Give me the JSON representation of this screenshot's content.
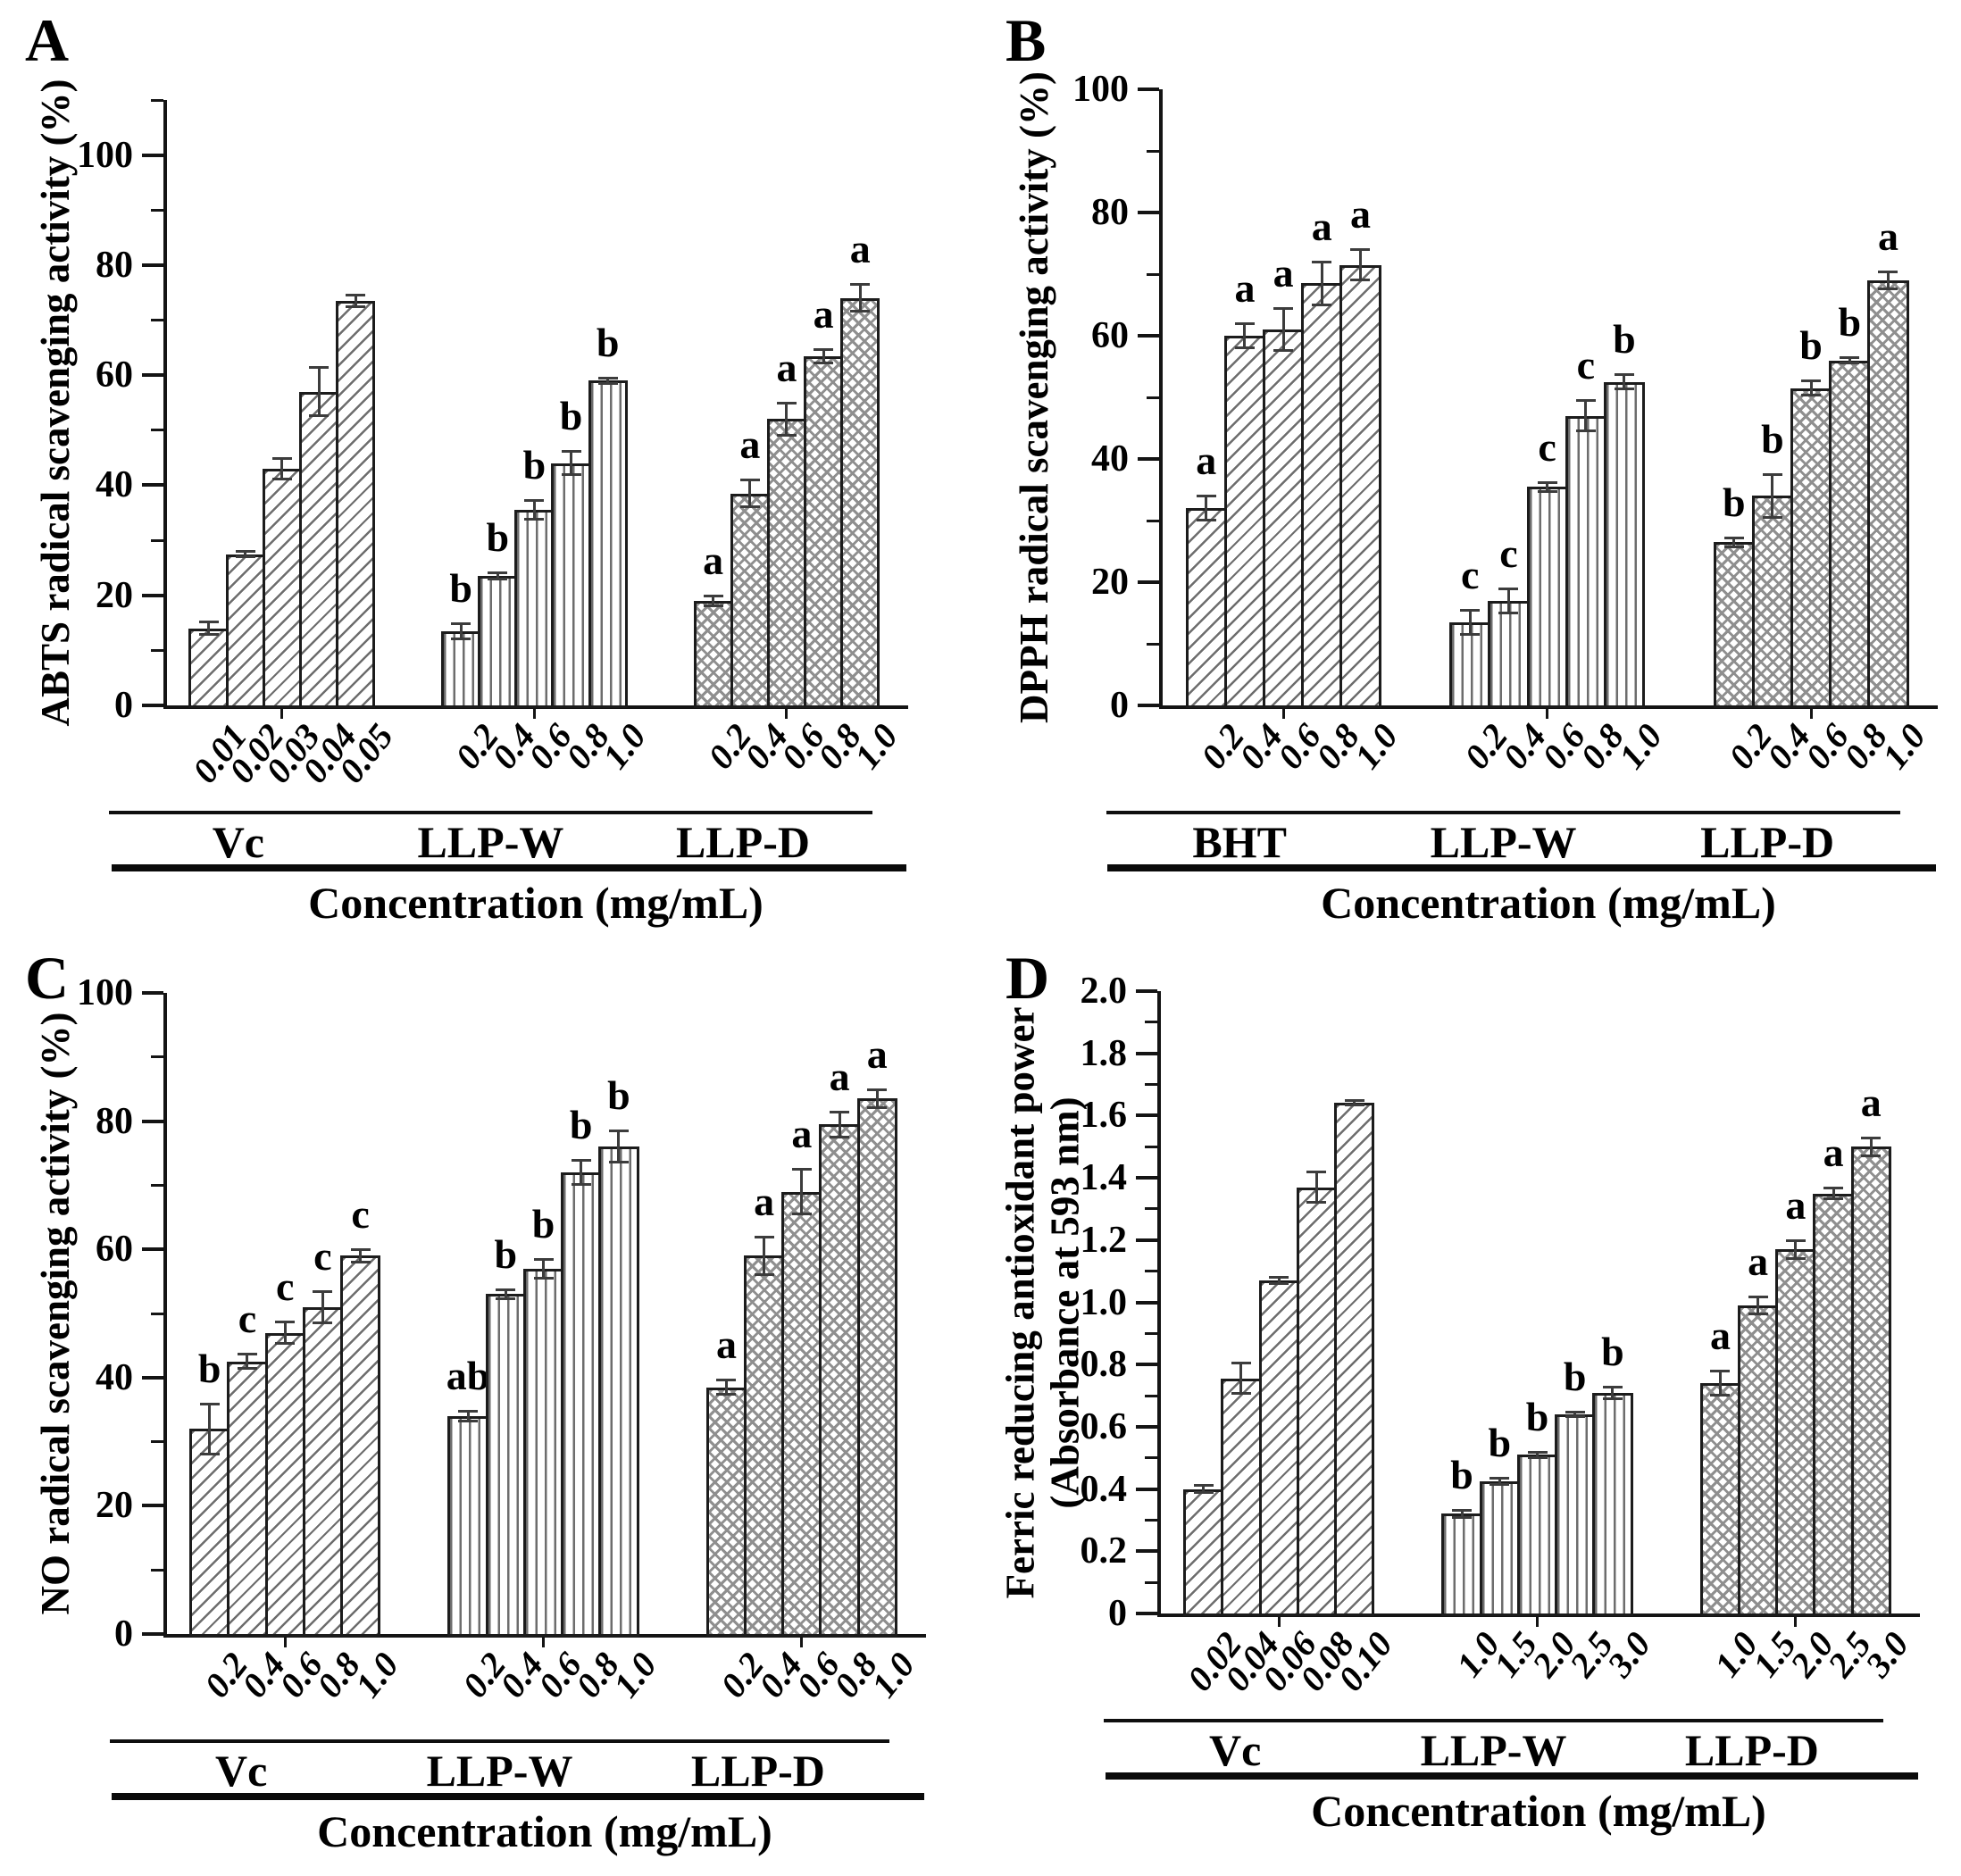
{
  "figure_colors": {
    "ink": "#000000",
    "axis": "#141414",
    "hatch_gray": "#6d6d6d"
  },
  "chart_data": [
    {
      "panel_label": "A",
      "type": "bar",
      "title": "",
      "ylabel_lines": [
        "ABTS radical scavenging activity (%)"
      ],
      "xlabel": "Concentration (mg/mL)",
      "ylim": [
        0,
        110
      ],
      "ytick_labels": [
        "0",
        "20",
        "40",
        "60",
        "80",
        "100"
      ],
      "ytick_major_step": 20,
      "ytick_minor_step": 10,
      "grid": "off",
      "legend": "none",
      "groups": [
        {
          "name": "Vc",
          "pattern": "diagonal",
          "categories": [
            "0.01",
            "0.02",
            "0.03",
            "0.04",
            "0.05"
          ],
          "values": [
            14,
            27.5,
            43,
            57,
            73.5
          ],
          "errors": [
            1.2,
            0.5,
            2,
            4.5,
            1.2
          ],
          "letters": [
            "",
            "",
            "",
            "",
            ""
          ]
        },
        {
          "name": "LLP-W",
          "pattern": "vertical",
          "categories": [
            "0.2",
            "0.4",
            "0.6",
            "0.8",
            "1.0"
          ],
          "values": [
            13.5,
            23.5,
            35.5,
            44,
            59
          ],
          "errors": [
            1.5,
            0.7,
            1.8,
            2.2,
            0.6
          ],
          "letters": [
            "b",
            "b",
            "b",
            "b",
            "b"
          ]
        },
        {
          "name": "LLP-D",
          "pattern": "crosshatch",
          "categories": [
            "0.2",
            "0.4",
            "0.6",
            "0.8",
            "1.0"
          ],
          "values": [
            19,
            38.5,
            52,
            63.5,
            74
          ],
          "errors": [
            1,
            2.5,
            3,
            1.3,
            2.5
          ],
          "letters": [
            "a",
            "a",
            "a",
            "a",
            "a"
          ]
        }
      ]
    },
    {
      "panel_label": "B",
      "type": "bar",
      "title": "",
      "ylabel_lines": [
        "DPPH radical scavenging activity (%)"
      ],
      "xlabel": "Concentration (mg/mL)",
      "ylim": [
        0,
        100
      ],
      "ytick_labels": [
        "0",
        "20",
        "40",
        "60",
        "80",
        "100"
      ],
      "ytick_major_step": 20,
      "ytick_minor_step": 10,
      "grid": "off",
      "legend": "none",
      "groups": [
        {
          "name": "BHT",
          "pattern": "diagonal",
          "categories": [
            "0.2",
            "0.4",
            "0.6",
            "0.8",
            "1.0"
          ],
          "values": [
            32,
            60,
            61,
            68.5,
            71.5
          ],
          "errors": [
            2,
            2,
            3.5,
            3.5,
            2.5
          ],
          "letters": [
            "a",
            "a",
            "a",
            "a",
            "a"
          ]
        },
        {
          "name": "LLP-W",
          "pattern": "vertical",
          "categories": [
            "0.2",
            "0.4",
            "0.6",
            "0.8",
            "1.0"
          ],
          "values": [
            13.5,
            17,
            35.5,
            47,
            52.5
          ],
          "errors": [
            2,
            2,
            0.8,
            2.5,
            1.2
          ],
          "letters": [
            "c",
            "c",
            "c",
            "c",
            "b"
          ]
        },
        {
          "name": "LLP-D",
          "pattern": "crosshatch",
          "categories": [
            "0.2",
            "0.4",
            "0.6",
            "0.8",
            "1.0"
          ],
          "values": [
            26.5,
            34,
            51.5,
            56,
            69
          ],
          "errors": [
            0.8,
            3.5,
            1.2,
            0.5,
            1.5
          ],
          "letters": [
            "b",
            "b",
            "b",
            "b",
            "a"
          ]
        }
      ]
    },
    {
      "panel_label": "C",
      "type": "bar",
      "title": "",
      "ylabel_lines": [
        "NO radical scavenging activity (%)"
      ],
      "xlabel": "Concentration (mg/mL)",
      "ylim": [
        0,
        100
      ],
      "ytick_labels": [
        "0",
        "20",
        "40",
        "60",
        "80",
        "100"
      ],
      "ytick_major_step": 20,
      "ytick_minor_step": 10,
      "grid": "off",
      "legend": "none",
      "groups": [
        {
          "name": "Vc",
          "pattern": "diagonal",
          "categories": [
            "0.2",
            "0.4",
            "0.6",
            "0.8",
            "1.0"
          ],
          "values": [
            32,
            42.5,
            47,
            51,
            59
          ],
          "errors": [
            4,
            1.2,
            1.8,
            2.5,
            1
          ],
          "letters": [
            "b",
            "c",
            "c",
            "c",
            "c"
          ]
        },
        {
          "name": "LLP-W",
          "pattern": "vertical",
          "categories": [
            "0.2",
            "0.4",
            "0.6",
            "0.8",
            "1.0"
          ],
          "values": [
            34,
            53,
            57,
            72,
            76
          ],
          "errors": [
            0.8,
            0.8,
            1.5,
            2,
            2.5
          ],
          "letters": [
            "ab",
            "b",
            "b",
            "b",
            "b"
          ]
        },
        {
          "name": "LLP-D",
          "pattern": "crosshatch",
          "categories": [
            "0.2",
            "0.4",
            "0.6",
            "0.8",
            "1.0"
          ],
          "values": [
            38.5,
            59,
            69,
            79.5,
            83.5
          ],
          "errors": [
            1.2,
            3,
            3.5,
            2,
            1.5
          ],
          "letters": [
            "a",
            "a",
            "a",
            "a",
            "a"
          ]
        }
      ]
    },
    {
      "panel_label": "D",
      "type": "bar",
      "title": "",
      "ylabel_lines": [
        "Ferric reducing antioxidant  power",
        "(Absorbance at 593 nm)"
      ],
      "xlabel": "Concentration (mg/mL)",
      "ylim": [
        0,
        2.0
      ],
      "ytick_labels": [
        "0",
        "0.2",
        "0.4",
        "0.6",
        "0.8",
        "1.0",
        "1.2",
        "1.4",
        "1.6",
        "1.8",
        "2.0"
      ],
      "ytick_major_step": 0.2,
      "ytick_minor_step": 0.1,
      "grid": "off",
      "legend": "none",
      "groups": [
        {
          "name": "Vc",
          "pattern": "diagonal",
          "categories": [
            "0.02",
            "0.04",
            "0.06",
            "0.08",
            "0.10"
          ],
          "values": [
            0.4,
            0.755,
            1.07,
            1.37,
            1.64
          ],
          "errors": [
            0.012,
            0.05,
            0.012,
            0.05,
            0.006
          ],
          "letters": [
            "",
            "",
            "",
            "",
            ""
          ]
        },
        {
          "name": "LLP-W",
          "pattern": "vertical",
          "categories": [
            "1.0",
            "1.5",
            "2.0",
            "2.5",
            "3.0"
          ],
          "values": [
            0.32,
            0.425,
            0.51,
            0.64,
            0.71
          ],
          "errors": [
            0.012,
            0.012,
            0.01,
            0.008,
            0.02
          ],
          "letters": [
            "b",
            "b",
            "b",
            "b",
            "b"
          ]
        },
        {
          "name": "LLP-D",
          "pattern": "crosshatch",
          "categories": [
            "1.0",
            "1.5",
            "2.0",
            "2.5",
            "3.0"
          ],
          "values": [
            0.74,
            0.99,
            1.17,
            1.35,
            1.5
          ],
          "errors": [
            0.04,
            0.03,
            0.03,
            0.02,
            0.03
          ],
          "letters": [
            "a",
            "a",
            "a",
            "a",
            "a"
          ]
        }
      ]
    }
  ]
}
